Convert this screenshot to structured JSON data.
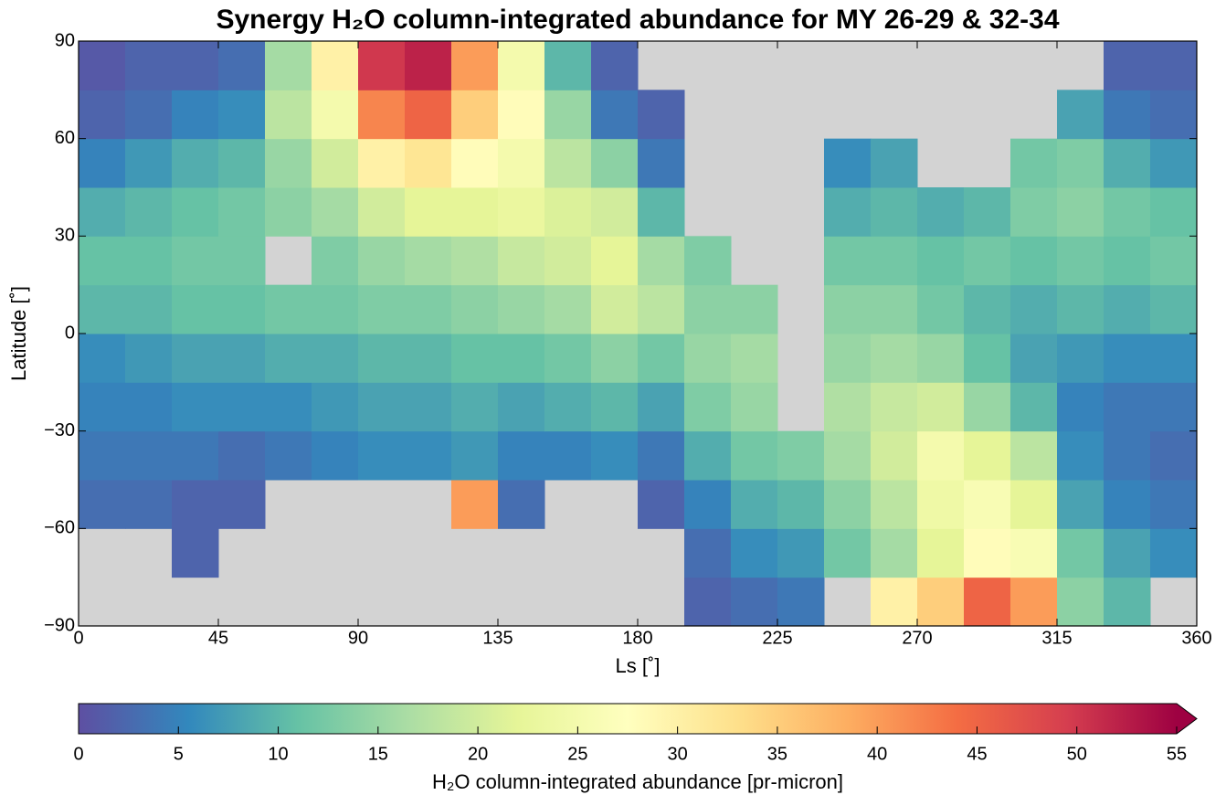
{
  "chart_data": {
    "type": "heatmap",
    "title": "Synergy H₂O column-integrated abundance for MY 26-29 & 32-34",
    "xlabel": "Ls [˚]",
    "ylabel": "Latitude [˚]",
    "xlim": [
      0,
      360
    ],
    "ylim": [
      -90,
      90
    ],
    "xticks": [
      0,
      45,
      90,
      135,
      180,
      225,
      270,
      315,
      360
    ],
    "yticks": [
      {
        "value": -90,
        "label": "−90"
      },
      {
        "value": -60,
        "label": "−60"
      },
      {
        "value": -30,
        "label": "−30"
      },
      0,
      30,
      60,
      90
    ],
    "xbins": [
      0,
      15,
      30,
      45,
      60,
      75,
      90,
      105,
      120,
      135,
      150,
      165,
      180,
      195,
      210,
      225,
      240,
      255,
      270,
      285,
      300,
      315,
      330,
      345,
      360
    ],
    "ybins": [
      -90,
      -75,
      -60,
      -45,
      -30,
      -15,
      0,
      15,
      30,
      45,
      60,
      75,
      90
    ],
    "values": [
      [
        null,
        null,
        null,
        null,
        null,
        null,
        null,
        null,
        null,
        null,
        null,
        null,
        null,
        2,
        3,
        4,
        null,
        30,
        35,
        45,
        40,
        14,
        10,
        null
      ],
      [
        null,
        null,
        2,
        null,
        null,
        null,
        null,
        null,
        null,
        null,
        null,
        null,
        null,
        3,
        6,
        7,
        12,
        16,
        22,
        28,
        26,
        12,
        8,
        6
      ],
      [
        3,
        3,
        2,
        2,
        null,
        null,
        null,
        null,
        40,
        3,
        null,
        null,
        2,
        5,
        9,
        10,
        14,
        18,
        24,
        26,
        22,
        8,
        5,
        4
      ],
      [
        4,
        4,
        4,
        3,
        4,
        5,
        6,
        6,
        7,
        5,
        5,
        6,
        4,
        9,
        12,
        13,
        16,
        20,
        25,
        22,
        18,
        6,
        4,
        3
      ],
      [
        5,
        5,
        6,
        6,
        6,
        7,
        8,
        8,
        9,
        8,
        9,
        10,
        8,
        13,
        15,
        null,
        17,
        19,
        20,
        15,
        10,
        5,
        4,
        4
      ],
      [
        6,
        7,
        8,
        8,
        9,
        9,
        10,
        10,
        11,
        11,
        12,
        14,
        12,
        15,
        16,
        null,
        15,
        16,
        15,
        11,
        8,
        7,
        6,
        6
      ],
      [
        10,
        10,
        11,
        11,
        12,
        12,
        13,
        13,
        14,
        15,
        16,
        20,
        18,
        14,
        14,
        null,
        14,
        14,
        12,
        10,
        9,
        10,
        9,
        10
      ],
      [
        11,
        11,
        12,
        12,
        null,
        13,
        15,
        16,
        17,
        19,
        20,
        22,
        16,
        13,
        null,
        null,
        12,
        12,
        11,
        12,
        11,
        12,
        11,
        12
      ],
      [
        9,
        10,
        11,
        12,
        14,
        16,
        20,
        22,
        22,
        23,
        21,
        20,
        10,
        null,
        null,
        null,
        9,
        10,
        9,
        10,
        13,
        14,
        12,
        11
      ],
      [
        5,
        7,
        9,
        10,
        15,
        20,
        30,
        32,
        28,
        25,
        18,
        14,
        4,
        null,
        null,
        null,
        6,
        8,
        null,
        null,
        12,
        13,
        9,
        7
      ],
      [
        2,
        3,
        5,
        6,
        18,
        25,
        42,
        45,
        35,
        28,
        15,
        4,
        2,
        null,
        null,
        null,
        null,
        null,
        null,
        null,
        null,
        8,
        4,
        3
      ],
      [
        1,
        2,
        2,
        3,
        16,
        30,
        50,
        52,
        40,
        25,
        10,
        2,
        null,
        null,
        null,
        null,
        null,
        null,
        null,
        null,
        null,
        null,
        2,
        2
      ]
    ],
    "missing_color": "#d3d3d3",
    "colormap": [
      "#5e4fa2",
      "#3288bd",
      "#66c2a5",
      "#abdda4",
      "#e6f598",
      "#ffffbf",
      "#fee08b",
      "#fdae61",
      "#f46d43",
      "#d53e4f",
      "#9e0142"
    ],
    "colorbar": {
      "label": "H₂O column-integrated abundance [pr-micron]",
      "lim": [
        0,
        55
      ],
      "ticks": [
        0,
        5,
        10,
        15,
        20,
        25,
        30,
        35,
        40,
        45,
        50,
        55
      ],
      "extend": "max"
    }
  }
}
